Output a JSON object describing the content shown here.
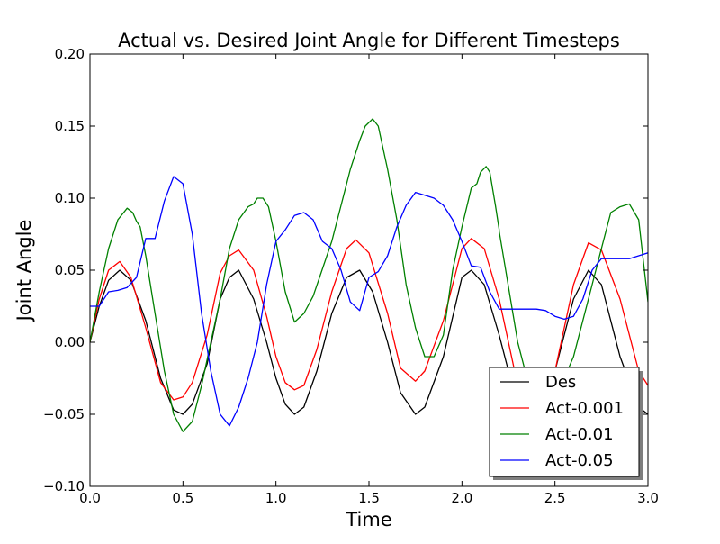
{
  "chart_data": {
    "type": "line",
    "title": "Actual vs. Desired Joint Angle for Different Timesteps",
    "xlabel": "Time",
    "ylabel": "Joint Angle",
    "xlim": [
      0.0,
      3.0
    ],
    "ylim": [
      -0.1,
      0.2
    ],
    "x_ticks": [
      "0.0",
      "0.5",
      "1.0",
      "1.5",
      "2.0",
      "2.5",
      "3.0"
    ],
    "y_ticks": [
      "−0.10",
      "−0.05",
      "0.00",
      "0.05",
      "0.10",
      "0.15",
      "0.20"
    ],
    "grid": false,
    "legend_position": "lower-right",
    "series": [
      {
        "name": "Des",
        "color": "#000000",
        "x": [
          0.0,
          0.05,
          0.1,
          0.16,
          0.22,
          0.3,
          0.38,
          0.45,
          0.5,
          0.55,
          0.63,
          0.7,
          0.75,
          0.8,
          0.88,
          0.95,
          1.0,
          1.05,
          1.1,
          1.15,
          1.22,
          1.3,
          1.38,
          1.45,
          1.52,
          1.6,
          1.67,
          1.75,
          1.8,
          1.9,
          2.0,
          2.05,
          2.12,
          2.2,
          2.3,
          2.4,
          2.5,
          2.6,
          2.68,
          2.75,
          2.85,
          2.95,
          3.0
        ],
        "y": [
          0.0,
          0.025,
          0.043,
          0.05,
          0.043,
          0.015,
          -0.025,
          -0.047,
          -0.05,
          -0.043,
          -0.015,
          0.03,
          0.045,
          0.05,
          0.03,
          0.0,
          -0.025,
          -0.043,
          -0.05,
          -0.045,
          -0.02,
          0.02,
          0.045,
          0.05,
          0.035,
          0.0,
          -0.035,
          -0.05,
          -0.045,
          -0.01,
          0.045,
          0.05,
          0.04,
          0.005,
          -0.045,
          -0.045,
          -0.02,
          0.03,
          0.05,
          0.04,
          -0.01,
          -0.045,
          -0.05
        ]
      },
      {
        "name": "Act-0.001",
        "color": "#ff0000",
        "x": [
          0.0,
          0.05,
          0.1,
          0.16,
          0.22,
          0.3,
          0.38,
          0.45,
          0.5,
          0.55,
          0.63,
          0.7,
          0.75,
          0.8,
          0.88,
          0.95,
          1.0,
          1.05,
          1.1,
          1.15,
          1.22,
          1.3,
          1.38,
          1.43,
          1.5,
          1.6,
          1.67,
          1.75,
          1.8,
          1.9,
          2.0,
          2.05,
          2.12,
          2.2,
          2.3,
          2.4,
          2.5,
          2.6,
          2.68,
          2.75,
          2.85,
          2.95,
          3.0
        ],
        "y": [
          0.0,
          0.03,
          0.05,
          0.056,
          0.045,
          0.01,
          -0.028,
          -0.04,
          -0.038,
          -0.028,
          0.005,
          0.048,
          0.06,
          0.064,
          0.05,
          0.018,
          -0.01,
          -0.028,
          -0.033,
          -0.03,
          -0.005,
          0.035,
          0.065,
          0.071,
          0.062,
          0.02,
          -0.018,
          -0.027,
          -0.02,
          0.015,
          0.065,
          0.072,
          0.065,
          0.03,
          -0.03,
          -0.04,
          -0.02,
          0.04,
          0.069,
          0.064,
          0.03,
          -0.02,
          -0.03
        ]
      },
      {
        "name": "Act-0.01",
        "color": "#008000",
        "x": [
          0.0,
          0.05,
          0.1,
          0.15,
          0.2,
          0.23,
          0.25,
          0.27,
          0.3,
          0.35,
          0.4,
          0.45,
          0.5,
          0.55,
          0.6,
          0.65,
          0.7,
          0.75,
          0.8,
          0.85,
          0.88,
          0.9,
          0.93,
          0.96,
          1.0,
          1.05,
          1.1,
          1.15,
          1.2,
          1.3,
          1.35,
          1.4,
          1.45,
          1.48,
          1.52,
          1.55,
          1.6,
          1.65,
          1.7,
          1.75,
          1.8,
          1.85,
          1.9,
          1.95,
          2.0,
          2.05,
          2.08,
          2.1,
          2.13,
          2.15,
          2.18,
          2.2,
          2.2,
          2.3,
          2.4,
          2.45,
          2.5,
          2.6,
          2.7,
          2.75,
          2.8,
          2.85,
          2.9,
          2.95,
          3.0
        ],
        "y": [
          0.0,
          0.035,
          0.065,
          0.085,
          0.093,
          0.09,
          0.084,
          0.08,
          0.06,
          0.02,
          -0.02,
          -0.05,
          -0.062,
          -0.055,
          -0.03,
          0.0,
          0.03,
          0.065,
          0.085,
          0.094,
          0.096,
          0.1,
          0.1,
          0.094,
          0.07,
          0.035,
          0.014,
          0.02,
          0.032,
          0.07,
          0.095,
          0.12,
          0.14,
          0.15,
          0.155,
          0.15,
          0.12,
          0.085,
          0.04,
          0.01,
          -0.01,
          -0.01,
          0.005,
          0.05,
          0.08,
          0.107,
          0.11,
          0.118,
          0.122,
          0.118,
          0.095,
          0.078,
          0.077,
          0.0,
          -0.05,
          -0.05,
          -0.04,
          -0.01,
          0.04,
          0.065,
          0.09,
          0.094,
          0.096,
          0.085,
          0.028
        ]
      },
      {
        "name": "Act-0.05",
        "color": "#0000ff",
        "x": [
          0.0,
          0.05,
          0.1,
          0.15,
          0.2,
          0.25,
          0.3,
          0.35,
          0.4,
          0.45,
          0.5,
          0.55,
          0.6,
          0.65,
          0.7,
          0.75,
          0.8,
          0.85,
          0.9,
          0.95,
          1.0,
          1.05,
          1.1,
          1.15,
          1.2,
          1.25,
          1.3,
          1.35,
          1.4,
          1.45,
          1.5,
          1.55,
          1.6,
          1.65,
          1.7,
          1.75,
          1.8,
          1.85,
          1.9,
          1.95,
          2.0,
          2.05,
          2.1,
          2.15,
          2.2,
          2.25,
          2.3,
          2.35,
          2.4,
          2.45,
          2.5,
          2.55,
          2.6,
          2.65,
          2.7,
          2.75,
          2.8,
          2.85,
          2.9,
          2.95,
          3.0
        ],
        "y": [
          0.025,
          0.025,
          0.035,
          0.036,
          0.038,
          0.045,
          0.072,
          0.072,
          0.098,
          0.115,
          0.11,
          0.075,
          0.02,
          -0.02,
          -0.05,
          -0.058,
          -0.045,
          -0.025,
          0.0,
          0.04,
          0.07,
          0.078,
          0.088,
          0.09,
          0.085,
          0.07,
          0.065,
          0.05,
          0.028,
          0.022,
          0.045,
          0.049,
          0.06,
          0.08,
          0.095,
          0.104,
          0.102,
          0.1,
          0.095,
          0.085,
          0.07,
          0.053,
          0.052,
          0.035,
          0.023,
          0.023,
          0.023,
          0.023,
          0.023,
          0.022,
          0.018,
          0.016,
          0.018,
          0.03,
          0.05,
          0.058,
          0.058,
          0.058,
          0.058,
          0.06,
          0.062
        ]
      }
    ]
  }
}
